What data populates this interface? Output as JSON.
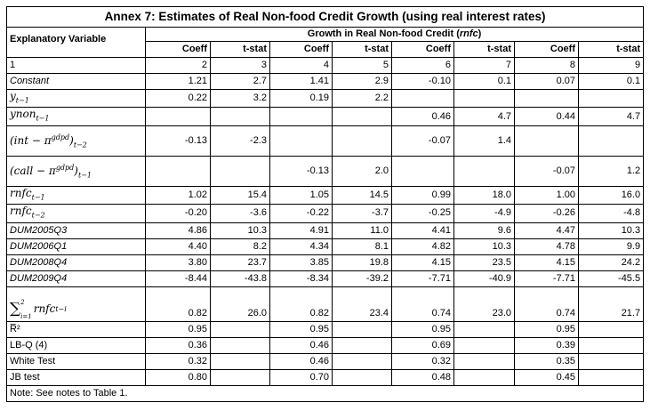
{
  "table": {
    "title": "Annex 7: Estimates of Real Non-food Credit Growth (using real interest rates)",
    "explanatory_label": "Explanatory Variable",
    "group_label_prefix": "Growth in Real Non-food Credit (",
    "group_label_italic": "rnfc",
    "group_label_suffix": ")",
    "col_headers": [
      "Coeff",
      "t-stat",
      "Coeff",
      "t-stat",
      "Coeff",
      "t-stat",
      "Coeff",
      "t-stat"
    ],
    "col_numbers": [
      "1",
      "2",
      "3",
      "4",
      "5",
      "6",
      "7",
      "8",
      "9"
    ],
    "rows": [
      {
        "label": "Constant",
        "values": [
          "1.21",
          "2.7",
          "1.41",
          "2.9",
          "-0.10",
          "0.1",
          "0.07",
          "0.1"
        ]
      },
      {
        "label": "y",
        "label_sub": "t−1",
        "values": [
          "0.22",
          "3.2",
          "0.19",
          "2.2",
          "",
          "",
          "",
          ""
        ]
      },
      {
        "label": "ynon",
        "label_sub": "t−1",
        "values": [
          "",
          "",
          "",
          "",
          "0.46",
          "4.7",
          "0.44",
          "4.7"
        ]
      },
      {
        "label": "(int − π",
        "label_sup": "gdpd",
        "label_end": ")",
        "label_sub": "t−2",
        "values": [
          "-0.13",
          "-2.3",
          "",
          "",
          "-0.07",
          "1.4",
          "",
          ""
        ]
      },
      {
        "label": "(call − π",
        "label_sup": "gdpd",
        "label_end": ")",
        "label_sub": "t−1",
        "values": [
          "",
          "",
          "-0.13",
          "2.0",
          "",
          "",
          "-0.07",
          "1.2"
        ]
      },
      {
        "label": "rnfc",
        "label_sub": "t−1",
        "values": [
          "1.02",
          "15.4",
          "1.05",
          "14.5",
          "0.99",
          "18.0",
          "1.00",
          "16.0"
        ]
      },
      {
        "label": "rnfc",
        "label_sub": "t−2",
        "values": [
          "-0.20",
          "-3.6",
          "-0.22",
          "-3.7",
          "-0.25",
          "-4.9",
          "-0.26",
          "-4.8"
        ]
      },
      {
        "label": "DUM2005Q3",
        "values": [
          "4.86",
          "10.3",
          "4.91",
          "11.0",
          "4.41",
          "9.6",
          "4.47",
          "10.3"
        ]
      },
      {
        "label": "DUM2006Q1",
        "values": [
          "4.40",
          "8.2",
          "4.34",
          "8.1",
          "4.82",
          "10.3",
          "4.78",
          "9.9"
        ]
      },
      {
        "label": "DUM2008Q4",
        "values": [
          "3.80",
          "23.7",
          "3.85",
          "19.8",
          "4.15",
          "23.5",
          "4.15",
          "24.2"
        ]
      },
      {
        "label": "DUM2009Q4",
        "values": [
          "-8.44",
          "-43.8",
          "-8.34",
          "-39.2",
          "-7.71",
          "-40.9",
          "-7.71",
          "-45.5"
        ]
      }
    ],
    "sum_row": {
      "sigma": "∑",
      "upper": "2",
      "lower": "i=1",
      "term": "rnfc",
      "term_sub": "t−i",
      "values": [
        "0.82",
        "26.0",
        "0.82",
        "23.4",
        "0.74",
        "23.0",
        "0.74",
        "21.7"
      ]
    },
    "stats_rows": [
      {
        "label": "R̅²",
        "values": [
          "0.95",
          "0.95",
          "0.95",
          "0.95"
        ]
      },
      {
        "label": "LB-Q (4)",
        "values": [
          "0.36",
          "0.46",
          "0.69",
          "0.39"
        ]
      },
      {
        "label": "White Test",
        "values": [
          "0.32",
          "0.46",
          "0.32",
          "0.35"
        ]
      },
      {
        "label": "JB test",
        "values": [
          "0.80",
          "0.70",
          "0.48",
          "0.45"
        ]
      }
    ],
    "note": "Note: See notes to Table 1."
  }
}
